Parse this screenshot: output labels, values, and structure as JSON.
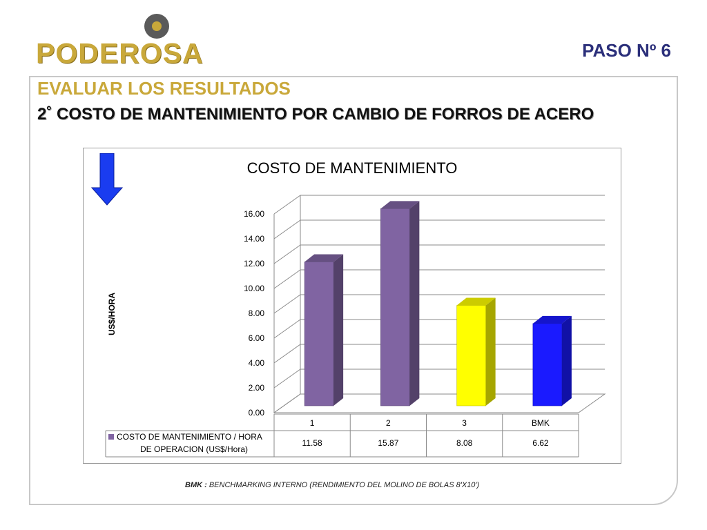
{
  "logo": {
    "name": "PODEROSA"
  },
  "step": "PASO  Nº 6",
  "heading": "EVALUAR LOS RESULTADOS",
  "subheading": "2˚  COSTO DE MANTENIMIENTO POR CAMBIO DE FORROS DE ACERO",
  "footnote": {
    "label": "BMK :",
    "text": " BENCHMARKING INTERNO (RENDIMIENTO DEL MOLINO DE BOLAS 8'X10')"
  },
  "colors": {
    "accent_gold": "#c9a83a",
    "step_navy": "#2b2f7a",
    "arrow_blue": "#1a3cf0"
  },
  "icons": {
    "arrow": "down-arrow-icon"
  },
  "chart_data": {
    "type": "bar",
    "title": "COSTO DE MANTENIMIENTO",
    "ylabel": "US$/HORA",
    "xlabel": "",
    "ylim": [
      0,
      16
    ],
    "yticks": [
      "0.00",
      "2.00",
      "4.00",
      "6.00",
      "8.00",
      "10.00",
      "12.00",
      "14.00",
      "16.00"
    ],
    "categories": [
      "1",
      "2",
      "3",
      "BMK"
    ],
    "series": [
      {
        "name": "COSTO DE MANTENIMIENTO / HORA DE OPERACION (US$/Hora)",
        "values": [
          11.58,
          15.87,
          8.08,
          6.62
        ],
        "value_labels": [
          "11.58",
          "15.87",
          "8.08",
          "6.62"
        ]
      }
    ],
    "bar_colors": [
      "#8064a2",
      "#8064a2",
      "#ffff00",
      "#1a1aff"
    ],
    "grid": true,
    "data_table": true
  }
}
